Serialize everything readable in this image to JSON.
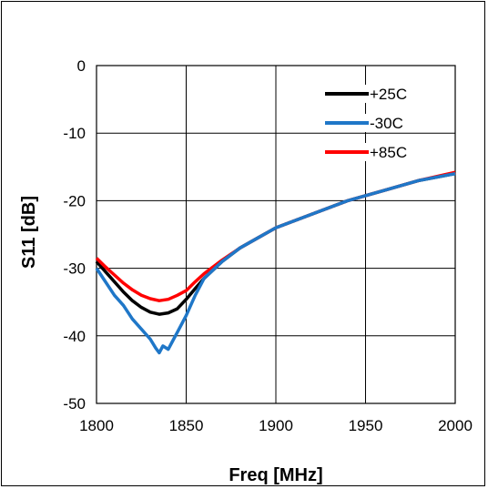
{
  "chart_data": {
    "type": "line",
    "title": "",
    "xlabel": "Freq [MHz]",
    "ylabel": "S11 [dB]",
    "xlim": [
      1800,
      2000
    ],
    "ylim": [
      -50,
      0
    ],
    "xticks": [
      1800,
      1850,
      1900,
      1950,
      2000
    ],
    "yticks": [
      0,
      -10,
      -20,
      -30,
      -40,
      -50
    ],
    "xtick_labels": [
      "1800",
      "1850",
      "1900",
      "1950",
      "2000"
    ],
    "ytick_labels": [
      "0",
      "-10",
      "-20",
      "-30",
      "-40",
      "-50"
    ],
    "grid": true,
    "legend_position": "top-right",
    "series": [
      {
        "name": "+25C",
        "color": "#000000",
        "x": [
          1800,
          1805,
          1810,
          1815,
          1820,
          1825,
          1830,
          1835,
          1840,
          1845,
          1850,
          1855,
          1860,
          1870,
          1880,
          1890,
          1900,
          1920,
          1940,
          1960,
          1980,
          2000
        ],
        "y": [
          -29,
          -30.5,
          -32,
          -33.5,
          -34.8,
          -35.8,
          -36.5,
          -36.8,
          -36.6,
          -36,
          -34.6,
          -33,
          -31.5,
          -29,
          -27,
          -25.5,
          -24,
          -22,
          -20,
          -18.5,
          -17,
          -16
        ]
      },
      {
        "name": "-30C",
        "color": "#1f77c8",
        "x": [
          1800,
          1805,
          1810,
          1815,
          1820,
          1825,
          1830,
          1833,
          1835,
          1837,
          1840,
          1843,
          1845,
          1850,
          1855,
          1860,
          1870,
          1880,
          1890,
          1900,
          1920,
          1940,
          1960,
          1980,
          2000
        ],
        "y": [
          -30,
          -32,
          -34,
          -35.5,
          -37.5,
          -39,
          -40.5,
          -41.8,
          -42.5,
          -41.5,
          -42,
          -40.5,
          -39.5,
          -37,
          -34,
          -31.5,
          -29,
          -27,
          -25.5,
          -24,
          -22,
          -20,
          -18.5,
          -17,
          -16
        ]
      },
      {
        "name": "+85C",
        "color": "#ff0000",
        "x": [
          1800,
          1805,
          1810,
          1815,
          1820,
          1825,
          1830,
          1835,
          1840,
          1845,
          1850,
          1855,
          1860,
          1870,
          1880,
          1890,
          1900,
          1920,
          1940,
          1960,
          1980,
          2000
        ],
        "y": [
          -28.5,
          -29.8,
          -31,
          -32.2,
          -33.2,
          -34,
          -34.5,
          -34.8,
          -34.6,
          -34,
          -33.3,
          -32,
          -30.8,
          -28.8,
          -27,
          -25.5,
          -24,
          -22,
          -20,
          -18.5,
          -17,
          -15.8
        ]
      }
    ]
  }
}
